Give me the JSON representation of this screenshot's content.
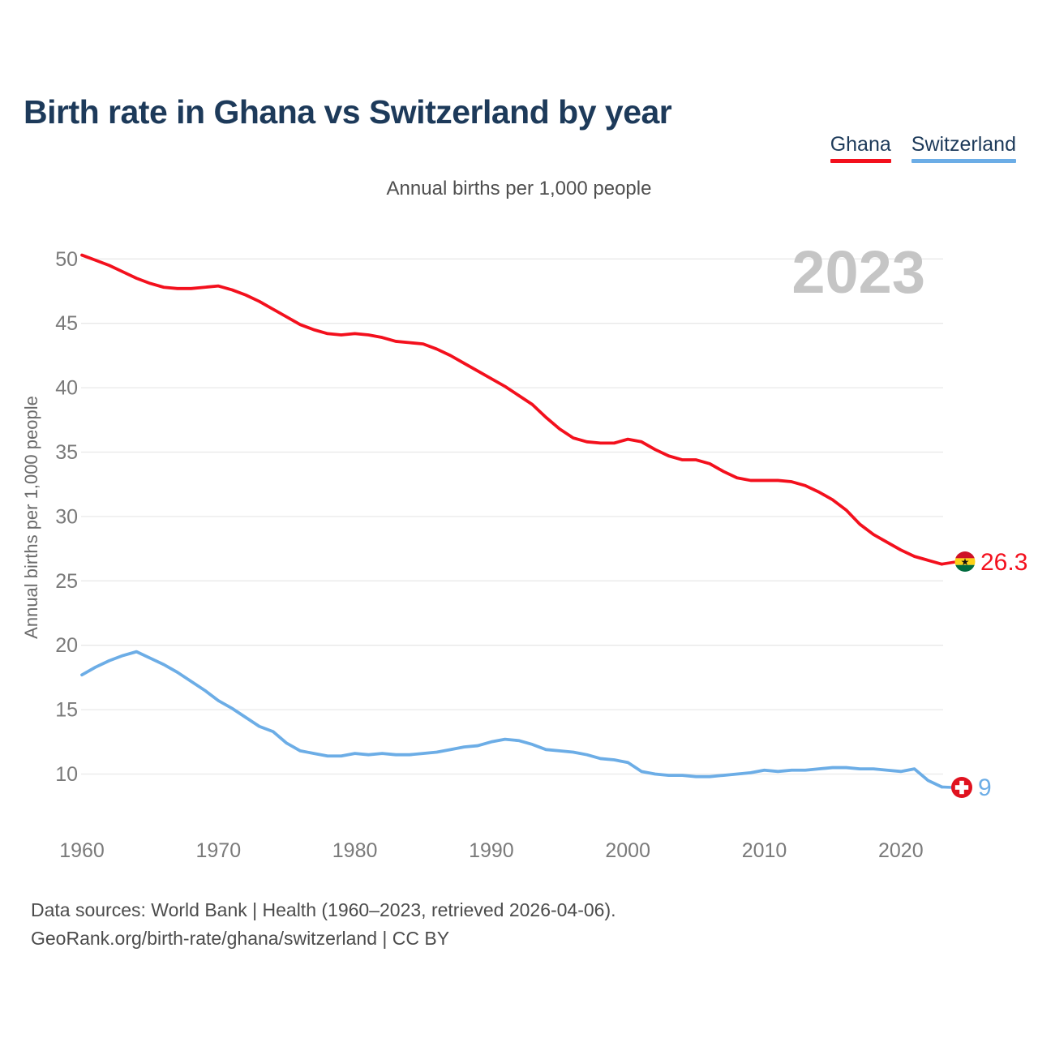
{
  "header": {
    "title": "Birth rate in Ghana vs Switzerland by year"
  },
  "legend": {
    "items": [
      {
        "label": "Ghana",
        "color": "#f3101d"
      },
      {
        "label": "Switzerland",
        "color": "#6cade6"
      }
    ]
  },
  "subtitle": "Annual births per 1,000 people",
  "watermark": "2023",
  "end_labels": {
    "ghana": "26.3",
    "switzerland": "9"
  },
  "footer": {
    "line1": "Data sources: World Bank | Health (1960–2023, retrieved 2026-04-06).",
    "line2": "GeoRank.org/birth-rate/ghana/switzerland | CC BY"
  },
  "chart_data": {
    "type": "line",
    "title": "Birth rate in Ghana vs Switzerland by year",
    "subtitle": "Annual births per 1,000 people",
    "xlabel": "",
    "ylabel": "Annual births per 1,000 people",
    "grid": "horizontal",
    "legend_position": "top-right",
    "xticks": [
      1960,
      1970,
      1980,
      1990,
      2000,
      2010,
      2020
    ],
    "yticks": [
      10,
      15,
      20,
      25,
      30,
      35,
      40,
      45,
      50
    ],
    "xlim": [
      1960,
      2023
    ],
    "ylim": [
      6,
      51
    ],
    "x": [
      1960,
      1961,
      1962,
      1963,
      1964,
      1965,
      1966,
      1967,
      1968,
      1969,
      1970,
      1971,
      1972,
      1973,
      1974,
      1975,
      1976,
      1977,
      1978,
      1979,
      1980,
      1981,
      1982,
      1983,
      1984,
      1985,
      1986,
      1987,
      1988,
      1989,
      1990,
      1991,
      1992,
      1993,
      1994,
      1995,
      1996,
      1997,
      1998,
      1999,
      2000,
      2001,
      2002,
      2003,
      2004,
      2005,
      2006,
      2007,
      2008,
      2009,
      2010,
      2011,
      2012,
      2013,
      2014,
      2015,
      2016,
      2017,
      2018,
      2019,
      2020,
      2021,
      2022,
      2023
    ],
    "series": [
      {
        "name": "Ghana",
        "color": "#f3101d",
        "end_label": "26.3",
        "values": [
          50.3,
          49.9,
          49.5,
          49.0,
          48.5,
          48.1,
          47.8,
          47.7,
          47.7,
          47.8,
          47.9,
          47.6,
          47.2,
          46.7,
          46.1,
          45.5,
          44.9,
          44.5,
          44.2,
          44.1,
          44.2,
          44.1,
          43.9,
          43.6,
          43.5,
          43.4,
          43.0,
          42.5,
          41.9,
          41.3,
          40.7,
          40.1,
          39.4,
          38.7,
          37.7,
          36.8,
          36.1,
          35.8,
          35.7,
          35.7,
          36.0,
          35.8,
          35.2,
          34.7,
          34.4,
          34.4,
          34.1,
          33.5,
          33.0,
          32.8,
          32.8,
          32.8,
          32.7,
          32.4,
          31.9,
          31.3,
          30.5,
          29.4,
          28.6,
          28.0,
          27.4,
          26.9,
          26.6,
          26.3
        ]
      },
      {
        "name": "Switzerland",
        "color": "#6cade6",
        "end_label": "9",
        "values": [
          17.7,
          18.3,
          18.8,
          19.2,
          19.5,
          19.0,
          18.5,
          17.9,
          17.2,
          16.5,
          15.7,
          15.1,
          14.4,
          13.7,
          13.3,
          12.4,
          11.8,
          11.6,
          11.4,
          11.4,
          11.6,
          11.5,
          11.6,
          11.5,
          11.5,
          11.6,
          11.7,
          11.9,
          12.1,
          12.2,
          12.5,
          12.7,
          12.6,
          12.3,
          11.9,
          11.8,
          11.7,
          11.5,
          11.2,
          11.1,
          10.9,
          10.2,
          10.0,
          9.9,
          9.9,
          9.8,
          9.8,
          9.9,
          10.0,
          10.1,
          10.3,
          10.2,
          10.3,
          10.3,
          10.4,
          10.5,
          10.5,
          10.4,
          10.4,
          10.3,
          10.2,
          10.4,
          9.5,
          9.0
        ]
      }
    ]
  }
}
